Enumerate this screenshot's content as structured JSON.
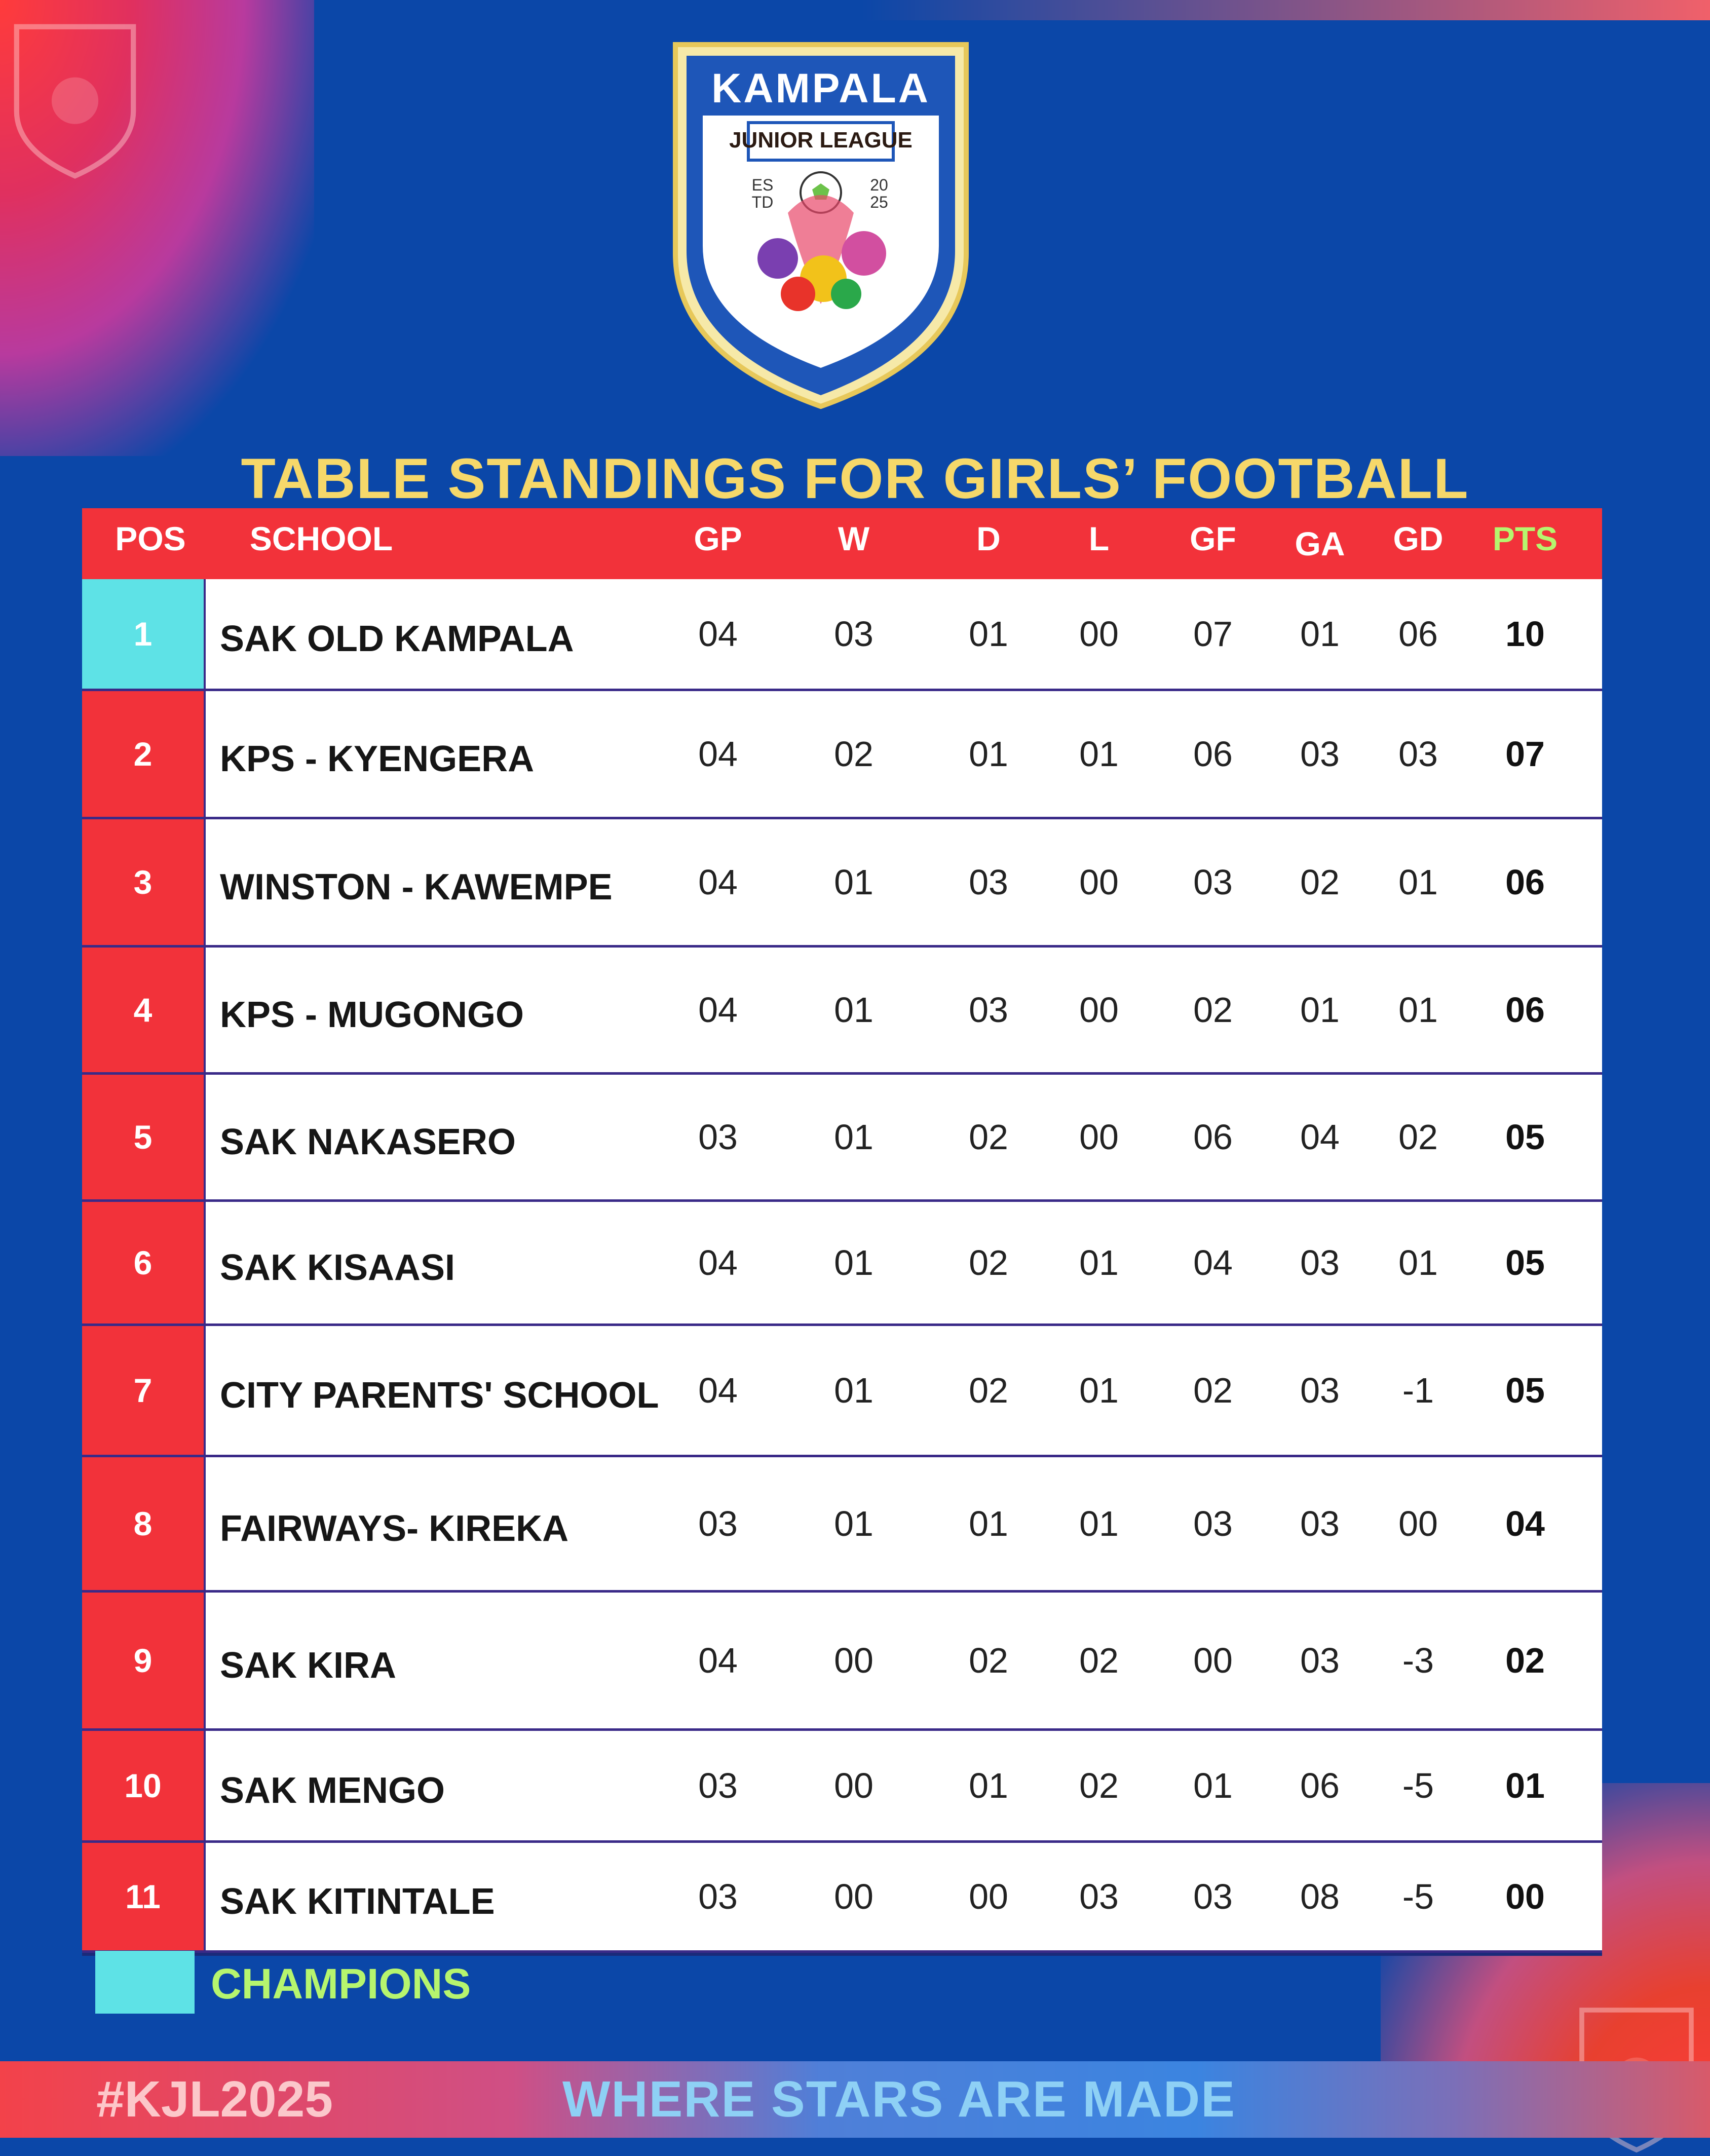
{
  "brand": {
    "name": "KAMPALA",
    "subtitle": "JUNIOR LEAGUE",
    "est_label": "ES\nTD",
    "year_label": "20\n25",
    "colors": {
      "primary": "#0b47a8",
      "accent_red": "#f2323a",
      "gold": "#f6d86a",
      "champion": "#5ee2e6",
      "lime": "#b6f56e"
    }
  },
  "heading": "TABLE STANDINGS  FOR GIRLS’ FOOTBALL",
  "table": {
    "headers": {
      "pos": "POS",
      "school": "SCHOOL",
      "gp": "GP",
      "w": "W",
      "d": "D",
      "l": "L",
      "gf": "GF",
      "ga": "GA",
      "gd": "GD",
      "pts": "PTS"
    },
    "rows": [
      {
        "pos": "1",
        "school": "SAK OLD KAMPALA",
        "gp": "04",
        "w": "03",
        "d": "01",
        "l": "00",
        "gf": "07",
        "ga": "01",
        "gd": "06",
        "pts": "10",
        "champion": true
      },
      {
        "pos": "2",
        "school": "KPS - KYENGERA",
        "gp": "04",
        "w": "02",
        "d": "01",
        "l": "01",
        "gf": "06",
        "ga": "03",
        "gd": "03",
        "pts": "07"
      },
      {
        "pos": "3",
        "school": "WINSTON - KAWEMPE",
        "gp": "04",
        "w": "01",
        "d": "03",
        "l": "00",
        "gf": "03",
        "ga": "02",
        "gd": "01",
        "pts": "06"
      },
      {
        "pos": "4",
        "school": "KPS - MUGONGO",
        "gp": "04",
        "w": "01",
        "d": "03",
        "l": "00",
        "gf": "02",
        "ga": "01",
        "gd": "01",
        "pts": "06"
      },
      {
        "pos": "5",
        "school": "SAK NAKASERO",
        "gp": "03",
        "w": "01",
        "d": "02",
        "l": "00",
        "gf": "06",
        "ga": "04",
        "gd": "02",
        "pts": "05"
      },
      {
        "pos": "6",
        "school": "SAK KISAASI",
        "gp": "04",
        "w": "01",
        "d": "02",
        "l": "01",
        "gf": "04",
        "ga": "03",
        "gd": "01",
        "pts": "05"
      },
      {
        "pos": "7",
        "school": "CITY PARENTS' SCHOOL",
        "gp": "04",
        "w": "01",
        "d": "02",
        "l": "01",
        "gf": "02",
        "ga": "03",
        "gd": "-1",
        "pts": "05"
      },
      {
        "pos": "8",
        "school": "FAIRWAYS- KIREKA",
        "gp": "03",
        "w": "01",
        "d": "01",
        "l": "01",
        "gf": "03",
        "ga": "03",
        "gd": "00",
        "pts": "04"
      },
      {
        "pos": "9",
        "school": "SAK KIRA",
        "gp": "04",
        "w": "00",
        "d": "02",
        "l": "02",
        "gf": "00",
        "ga": "03",
        "gd": "-3",
        "pts": "02"
      },
      {
        "pos": "10",
        "school": "SAK MENGO",
        "gp": "03",
        "w": "00",
        "d": "01",
        "l": "02",
        "gf": "01",
        "ga": "06",
        "gd": "-5",
        "pts": "01"
      },
      {
        "pos": "11",
        "school": "SAK KITINTALE",
        "gp": "03",
        "w": "00",
        "d": "00",
        "l": "03",
        "gf": "03",
        "ga": "08",
        "gd": "-5",
        "pts": "00"
      }
    ]
  },
  "legend": {
    "label": "CHAMPIONS"
  },
  "footer": {
    "hashtag": "#KJL2025",
    "slogan": "WHERE STARS ARE MADE"
  }
}
